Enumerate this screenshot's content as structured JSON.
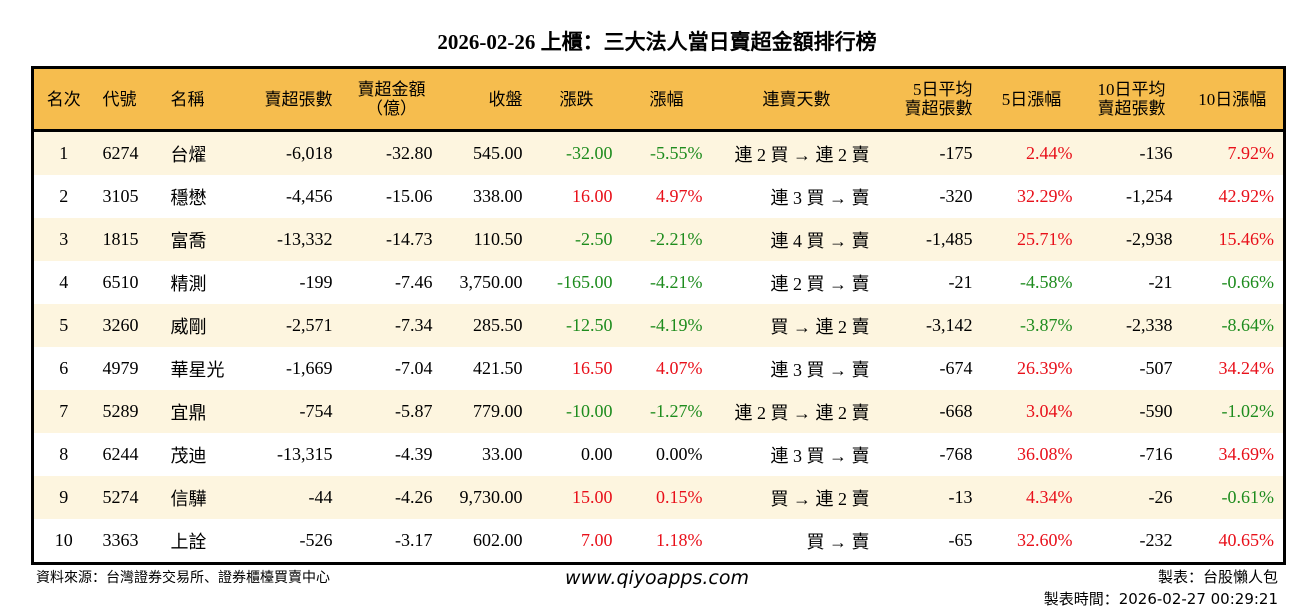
{
  "title": "2026-02-26 上櫃：三大法人當日賣超金額排行榜",
  "colors": {
    "header": "#f6bd4e",
    "row_alt": "#fdf5df",
    "up": "#e8101a",
    "down": "#1e8c1e"
  },
  "headers": [
    "名次",
    "代號",
    "名稱",
    "賣超張數",
    "賣超金額\n（億）",
    "收盤",
    "漲跌",
    "漲幅",
    "連賣天數",
    "5日平均\n賣超張數",
    "5日漲幅",
    "10日平均\n賣超張數",
    "10日漲幅"
  ],
  "rows": [
    [
      "1",
      "6274",
      "台燿",
      "-6,018",
      "-32.80",
      "545.00",
      "-32.00",
      "-5.55%",
      "連 2 買 → 連 2 賣",
      "-175",
      "2.44%",
      "-136",
      "7.92%"
    ],
    [
      "2",
      "3105",
      "穩懋",
      "-4,456",
      "-15.06",
      "338.00",
      "16.00",
      "4.97%",
      "連 3 買 → 賣",
      "-320",
      "32.29%",
      "-1,254",
      "42.92%"
    ],
    [
      "3",
      "1815",
      "富喬",
      "-13,332",
      "-14.73",
      "110.50",
      "-2.50",
      "-2.21%",
      "連 4 買 → 賣",
      "-1,485",
      "25.71%",
      "-2,938",
      "15.46%"
    ],
    [
      "4",
      "6510",
      "精測",
      "-199",
      "-7.46",
      "3,750.00",
      "-165.00",
      "-4.21%",
      "連 2 買 → 賣",
      "-21",
      "-4.58%",
      "-21",
      "-0.66%"
    ],
    [
      "5",
      "3260",
      "威剛",
      "-2,571",
      "-7.34",
      "285.50",
      "-12.50",
      "-4.19%",
      "買 → 連 2 賣",
      "-3,142",
      "-3.87%",
      "-2,338",
      "-8.64%"
    ],
    [
      "6",
      "4979",
      "華星光",
      "-1,669",
      "-7.04",
      "421.50",
      "16.50",
      "4.07%",
      "連 3 買 → 賣",
      "-674",
      "26.39%",
      "-507",
      "34.24%"
    ],
    [
      "7",
      "5289",
      "宜鼎",
      "-754",
      "-5.87",
      "779.00",
      "-10.00",
      "-1.27%",
      "連 2 買 → 連 2 賣",
      "-668",
      "3.04%",
      "-590",
      "-1.02%"
    ],
    [
      "8",
      "6244",
      "茂迪",
      "-13,315",
      "-4.39",
      "33.00",
      "0.00",
      "0.00%",
      "連 3 買 → 賣",
      "-768",
      "36.08%",
      "-716",
      "34.69%"
    ],
    [
      "9",
      "5274",
      "信驊",
      "-44",
      "-4.26",
      "9,730.00",
      "15.00",
      "0.15%",
      "買 → 連 2 賣",
      "-13",
      "4.34%",
      "-26",
      "-0.61%"
    ],
    [
      "10",
      "3363",
      "上詮",
      "-526",
      "-3.17",
      "602.00",
      "7.00",
      "1.18%",
      "買 → 賣",
      "-65",
      "32.60%",
      "-232",
      "40.65%"
    ]
  ],
  "footer": {
    "source": "資料來源：台灣證券交易所、證券櫃檯買賣中心",
    "website": "www.qiyoapps.com",
    "maker": "製表：台股懶人包",
    "time": "製表時間：2026-02-27 00:29:21"
  }
}
